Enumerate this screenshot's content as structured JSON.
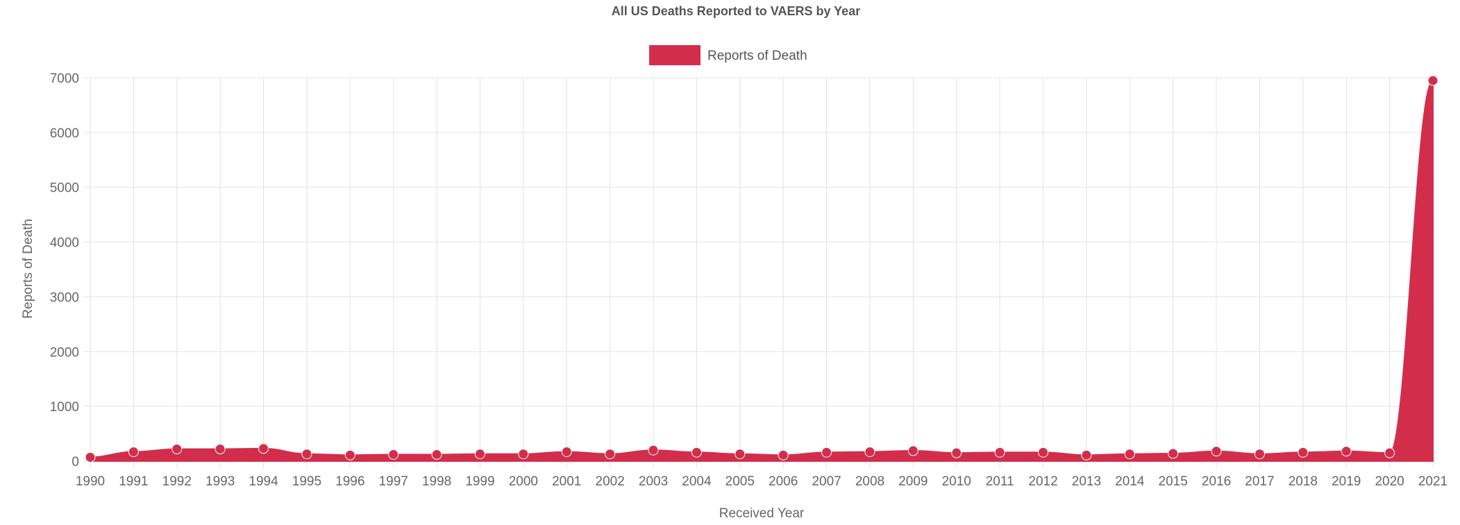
{
  "chart_data": {
    "type": "area",
    "title": "All US Deaths Reported to VAERS by Year",
    "xlabel": "Received Year",
    "ylabel": "Reports of Death",
    "ylim": [
      0,
      7000
    ],
    "yticks": [
      0,
      1000,
      2000,
      3000,
      4000,
      5000,
      6000,
      7000
    ],
    "grid": true,
    "legend_position": "top-center",
    "categories": [
      "1990",
      "1991",
      "1992",
      "1993",
      "1994",
      "1995",
      "1996",
      "1997",
      "1998",
      "1999",
      "2000",
      "2001",
      "2002",
      "2003",
      "2004",
      "2005",
      "2006",
      "2007",
      "2008",
      "2009",
      "2010",
      "2011",
      "2012",
      "2013",
      "2014",
      "2015",
      "2016",
      "2017",
      "2018",
      "2019",
      "2020",
      "2021"
    ],
    "series": [
      {
        "name": "Reports of Death",
        "color": "#d22e4c",
        "values": [
          70,
          170,
          220,
          220,
          230,
          130,
          110,
          120,
          120,
          130,
          130,
          170,
          130,
          200,
          160,
          130,
          110,
          160,
          170,
          190,
          150,
          160,
          160,
          110,
          130,
          140,
          180,
          130,
          160,
          180,
          150,
          6950
        ]
      }
    ]
  }
}
